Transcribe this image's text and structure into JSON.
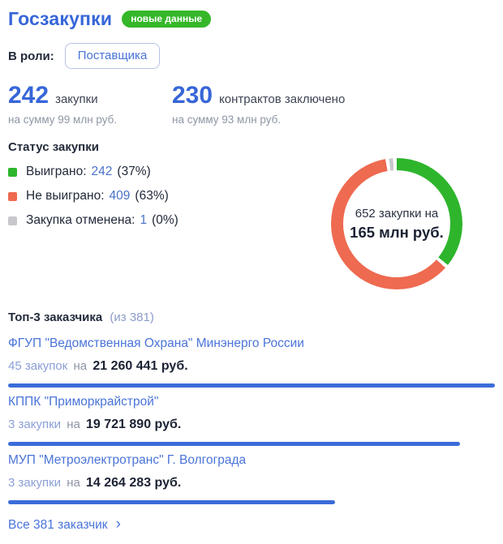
{
  "header": {
    "title": "Госзакупки",
    "badge": "новые данные"
  },
  "role": {
    "label": "В роли:",
    "value": "Поставщика"
  },
  "stats": [
    {
      "number": "242",
      "label": "закупки",
      "sub": "на сумму 99 млн руб."
    },
    {
      "number": "230",
      "label": "контрактов заключено",
      "sub": "на сумму 93 млн руб."
    }
  ],
  "status": {
    "title": "Статус закупки",
    "legend": [
      {
        "label": "Выиграно:",
        "value": "242",
        "percent": "(37%)",
        "color": "#2eb52c"
      },
      {
        "label": "Не выиграно:",
        "value": "409",
        "percent": "(63%)",
        "color": "#ee6a50"
      },
      {
        "label": "Закупка отменена:",
        "value": "1",
        "percent": "(0%)",
        "color": "#c8c8cc"
      }
    ],
    "donut_center": {
      "line1": "652 закупки на",
      "line2": "165 млн руб."
    }
  },
  "top_customers": {
    "title": "Топ-3 заказчика",
    "title_suffix": "(из 381)",
    "items": [
      {
        "name": "ФГУП \"Ведомственная Охрана\" Минэнерго России",
        "count": "45 закупок",
        "conn": "на",
        "amount": "21 260 441 руб."
      },
      {
        "name": "КППК \"Приморкрайстрой\"",
        "count": "3 закупки",
        "conn": "на",
        "amount": "19 721 890 руб."
      },
      {
        "name": "МУП \"Метроэлектротранс\" Г. Волгограда",
        "count": "3 закупки",
        "conn": "на",
        "amount": "14 264 283 руб."
      }
    ],
    "footer_link": "Все 381 заказчик",
    "footer_chevron": "›"
  },
  "chart_data": [
    {
      "type": "pie",
      "variant": "donut",
      "title": "Статус закупки",
      "labels": [
        "Выиграно",
        "Не выиграно",
        "Закупка отменена"
      ],
      "values": [
        242,
        409,
        1
      ],
      "percents": [
        37,
        63,
        0
      ],
      "colors": [
        "#2eb52c",
        "#ee6a50",
        "#c8c8cc"
      ],
      "total": 652,
      "center_text": [
        "652 закупки на",
        "165 млн руб."
      ],
      "legend_position": "left"
    },
    {
      "type": "bar",
      "orientation": "horizontal",
      "title": "Топ-3 заказчика (из 381)",
      "categories": [
        "ФГУП \"Ведомственная Охрана\" Минэнерго России",
        "КППК \"Приморкрайстрой\"",
        "МУП \"Метроэлектротранс\" Г. Волгограда"
      ],
      "values": [
        21260441,
        19721890,
        14264283
      ],
      "counts": [
        45,
        3,
        3
      ],
      "color": "#3b6cd9",
      "xlim": [
        0,
        21260441
      ]
    }
  ],
  "colors": {
    "accent_blue": "#3766d8",
    "link_blue": "#4a74d8",
    "badge_green": "#35b729",
    "donut_green": "#2eb52c",
    "donut_red": "#ee6a50",
    "donut_gray": "#c8c8cc",
    "bar_blue": "#3b6cd9"
  }
}
